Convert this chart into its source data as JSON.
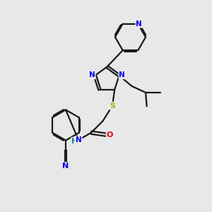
{
  "background_color": "#e8e8e8",
  "bond_color": "#1a1a1a",
  "atom_colors": {
    "N": "#0000ee",
    "O": "#ee0000",
    "S": "#aaaa00",
    "C": "#1a1a1a",
    "H": "#008888"
  },
  "figsize": [
    3.0,
    3.0
  ],
  "dpi": 100,
  "xlim": [
    0,
    10
  ],
  "ylim": [
    0,
    10
  ]
}
